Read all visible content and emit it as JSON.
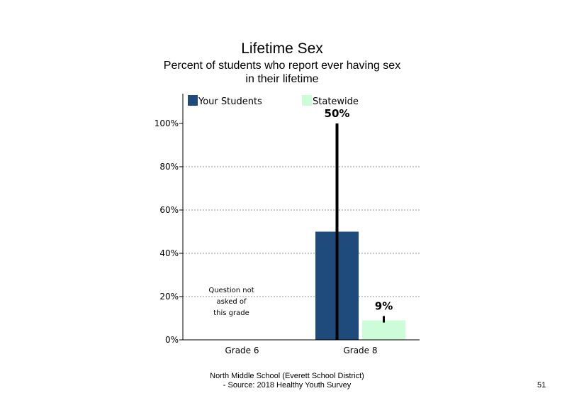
{
  "title": "Lifetime Sex",
  "subtitle_line1": "Percent of students who report ever having sex",
  "subtitle_line2": "in their lifetime",
  "footer_line1": "North Middle School (Everett School District)",
  "footer_line2": "- Source: 2018 Healthy Youth Survey",
  "page_number": "51",
  "chart_data": {
    "type": "bar",
    "categories": [
      "Grade 6",
      "Grade 8"
    ],
    "series": [
      {
        "name": "Your Students",
        "color": "#1f4a7c",
        "values": [
          null,
          50
        ],
        "labels": [
          "",
          "50%"
        ],
        "error_bar": [
          null,
          [
            0,
            100
          ]
        ]
      },
      {
        "name": "Statewide",
        "color": "#ccfcd8",
        "values": [
          null,
          9
        ],
        "labels": [
          "",
          "9%"
        ],
        "error_bar": [
          null,
          [
            8,
            11
          ]
        ]
      }
    ],
    "ylim": [
      0,
      100
    ],
    "yticks": [
      "0%",
      "20%",
      "40%",
      "60%",
      "80%",
      "100%"
    ],
    "ytick_values": [
      0,
      20,
      40,
      60,
      80,
      100
    ],
    "grid": true,
    "legend_position": "top",
    "annotation": [
      "Question not",
      "asked of",
      "this grade"
    ]
  }
}
